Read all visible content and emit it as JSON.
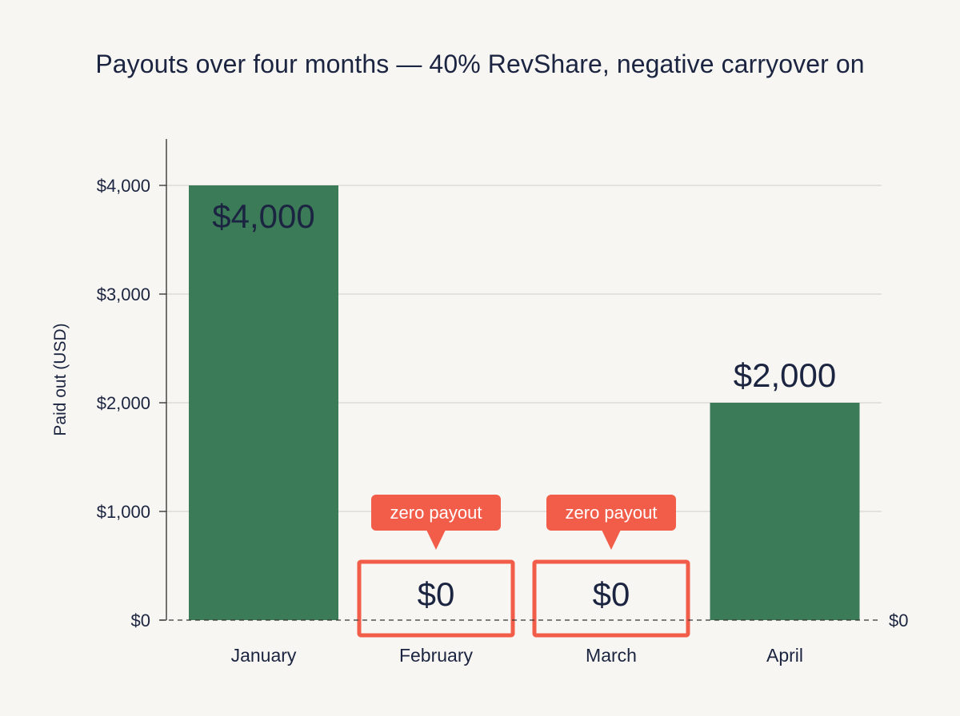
{
  "chart_data": {
    "type": "bar",
    "title": "Payouts over four months — 40% RevShare, negative carryover on",
    "ylabel": "Paid out (USD)",
    "xlabel": "",
    "categories": [
      "January",
      "February",
      "March",
      "April"
    ],
    "values": [
      4000,
      0,
      0,
      2000
    ],
    "value_labels": [
      "$4,000",
      "$0",
      "$0",
      "$2,000"
    ],
    "ylim": [
      0,
      4500
    ],
    "yticks": [
      0,
      1000,
      2000,
      3000,
      4000
    ],
    "ytick_labels": [
      "$0",
      "$1,000",
      "$2,000",
      "$3,000",
      "$4,000"
    ],
    "zero_line_label": "$0",
    "grid": true,
    "callouts": [
      {
        "category": "February",
        "text": "zero payout"
      },
      {
        "category": "March",
        "text": "zero payout"
      }
    ],
    "colors": {
      "bar": "#3b7b58",
      "highlight": "#f25d4a",
      "text": "#1b2440",
      "grid": "#d6d6d2",
      "axis": "#3a3a3a",
      "background": "#f8f6f2"
    }
  }
}
